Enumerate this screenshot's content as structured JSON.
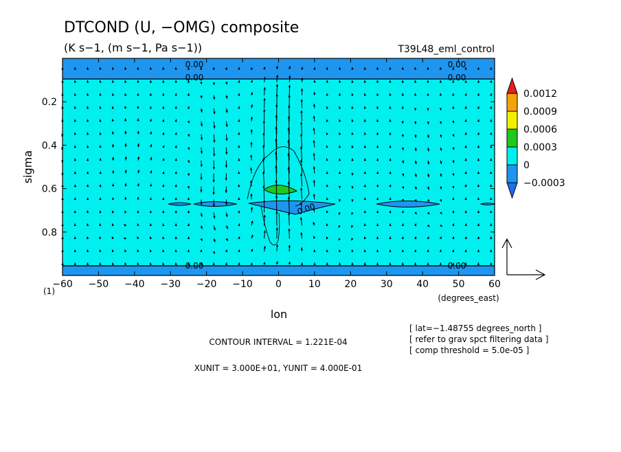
{
  "chart_data": {
    "type": "contour",
    "title": "DTCOND (U, −OMG) composite",
    "subtitle": "(K s−1, (m s−1, Pa s−1))",
    "run_label": "T39L48_eml_control",
    "xlabel": "lon",
    "x_unit_label": "(degrees_east)",
    "ylabel": "sigma",
    "corner_label": "(1)",
    "xlim": [
      -60,
      60
    ],
    "ylim": [
      1.0,
      0.0
    ],
    "x_ticks": [
      -60,
      -50,
      -40,
      -30,
      -20,
      -10,
      0,
      10,
      20,
      30,
      40,
      50,
      60
    ],
    "x_tick_labels": [
      "−60",
      "−50",
      "−40",
      "−30",
      "−20",
      "−10",
      "0",
      "10",
      "20",
      "30",
      "40",
      "50",
      "60"
    ],
    "y_ticks": [
      0.2,
      0.4,
      0.6,
      0.8
    ],
    "y_tick_labels": [
      "0.2",
      "0.4",
      "0.6",
      "0.8"
    ],
    "colorbar": {
      "labels": [
        "0.0012",
        "0.0009",
        "0.0006",
        "0.0003",
        "0",
        "−0.0003"
      ],
      "colors": [
        "#e51f1f",
        "#f5a30a",
        "#f0f000",
        "#20c820",
        "#00f0f0",
        "#1e96f0",
        "#1e6ef0"
      ]
    },
    "contour_labels": [
      "0.00",
      "0.00",
      "0.00",
      "0.00",
      "0.00",
      "0.00",
      "0.00"
    ],
    "contour_interval_text": "CONTOUR INTERVAL = 1.221E-04",
    "unit_text": "XUNIT = 3.000E+01, YUNIT = 4.000E-01",
    "info_lines": [
      "[ lat=−1.48755 degrees_north ]",
      "[ refer to grav spct filtering data ]",
      "[ comp threshold = 5.0e-05 ]"
    ],
    "filled_regions": [
      {
        "level": "negative",
        "sigma_range": [
          0.0,
          0.09
        ],
        "lon_range": [
          -60,
          60
        ]
      },
      {
        "level": "negative",
        "sigma_range": [
          0.955,
          1.0
        ],
        "lon_range": [
          -60,
          60
        ]
      },
      {
        "level": "positive",
        "center": [
          1,
          0.6
        ],
        "note": "green patch near 0 deg"
      }
    ],
    "vector_reference": {
      "x": 30,
      "y": 0.4
    }
  }
}
